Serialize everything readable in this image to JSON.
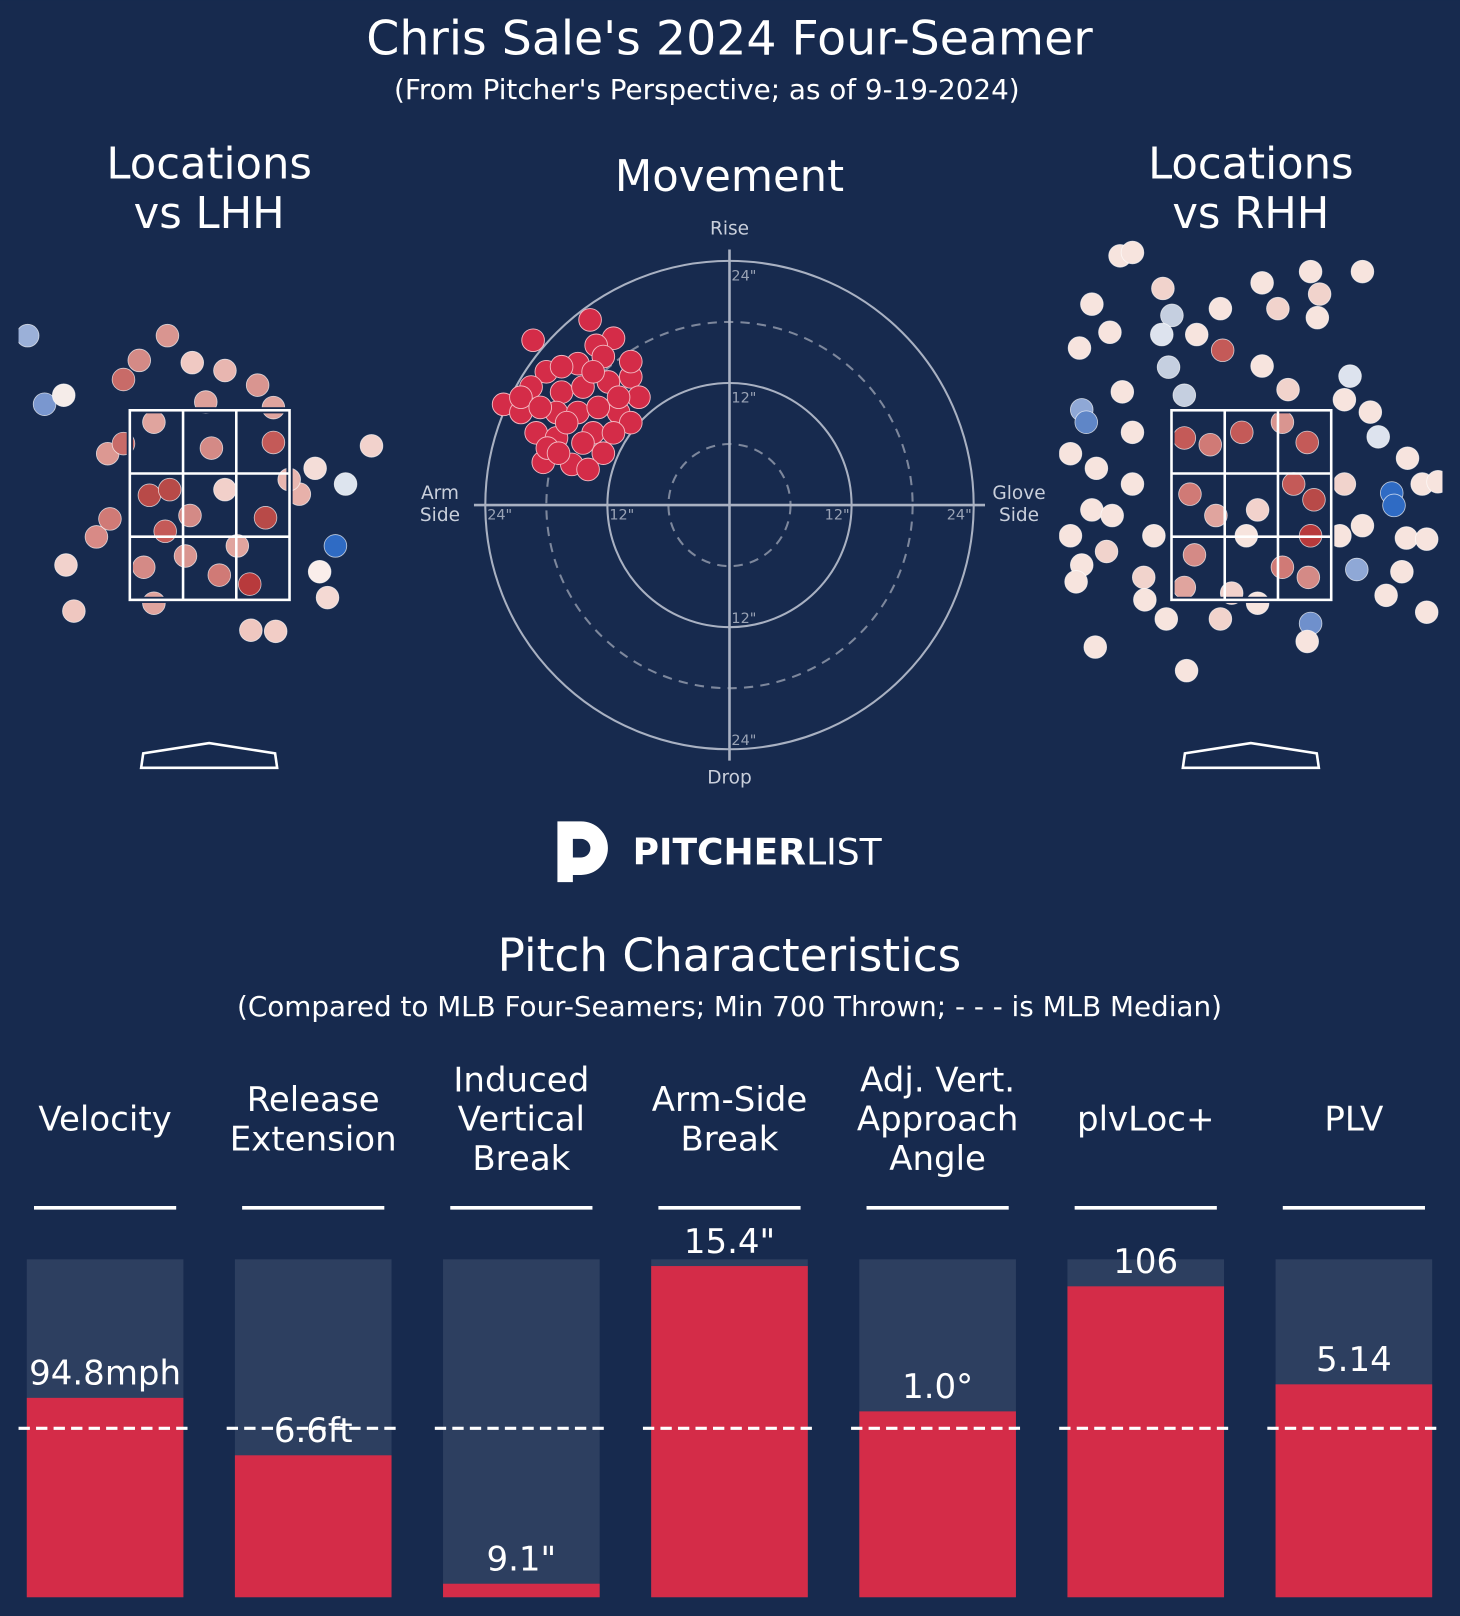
{
  "title": "Chris Sale's 2024 Four-Seamer",
  "subtitle": "(From Pitcher's Perspective; as of 9-19-2024)",
  "logo": [
    "PITCHER",
    "LIST"
  ],
  "chart_data": [
    {
      "type": "location",
      "title": [
        "Locations",
        "vs LHH"
      ],
      "xlim": [
        -1.7,
        1.7
      ],
      "ylim": [
        0.5,
        5.0
      ],
      "series": [
        {
          "x": [
            -1.61,
            -1.46,
            -1.29,
            -0.37,
            -0.62,
            -0.15,
            0.14,
            0.43,
            -0.76,
            0.57,
            1.44,
            1.21,
            0.94,
            1.12,
            0.98,
            1.05,
            0.59,
            0.37,
            -1.2,
            -1.27,
            -1.0,
            -0.88,
            -0.9,
            -0.49,
            0.36,
            0.09,
            -0.53,
            -0.35,
            -0.39,
            0.02,
            0.14,
            0.5,
            0.57,
            -0.17,
            -0.58,
            -0.21,
            0.8,
            0.25,
            -0.49,
            0.71,
            -0.76,
            -0.03
          ],
          "y": [
            3.95,
            3.34,
            3.42,
            3.95,
            3.73,
            3.71,
            3.64,
            3.51,
            3.56,
            3.31,
            2.97,
            2.63,
            2.77,
            2.08,
            1.85,
            1.62,
            1.32,
            1.33,
            1.5,
            1.91,
            2.16,
            2.32,
            2.9,
            1.57,
            1.74,
            1.82,
            2.53,
            2.58,
            2.21,
            2.95,
            2.58,
            2.33,
            3.0,
            2.35,
            1.89,
            1.99,
            2.54,
            2.08,
            3.18,
            2.67,
            2.99,
            3.36
          ],
          "colors": [
            "#9bb0d8",
            "#7a97cf",
            "#f5ece9",
            "#d99590",
            "#d48a86",
            "#f0c9c3",
            "#e8b6b0",
            "#d99590",
            "#c86b68",
            "#e0a49e",
            "#f2d2cc",
            "#dde4ee",
            "#f4ddd8",
            "#2f6bc4",
            "#faeeea",
            "#f4d9d3",
            "#f2cdc6",
            "#efc7c0",
            "#efc7c0",
            "#f2d2cc",
            "#d88a86",
            "#d07a76",
            "#dc9892",
            "#e0a49e",
            "#b83a3c",
            "#d07a76",
            "#b84a48",
            "#b84a48",
            "#c45a58",
            "#d48a86",
            "#f2d0ca",
            "#b84a48",
            "#c45a58",
            "#d48a86",
            "#d48a86",
            "#d99590",
            "#e7b1aa",
            "#e0a49e",
            "#e0a49e",
            "#e8b6b0",
            "#c86b68",
            "#dda09a"
          ]
        }
      ]
    },
    {
      "type": "movement",
      "title": [
        "Movement"
      ],
      "rlim": [
        0,
        24
      ],
      "axis_labels": {
        "top": [
          "Rise"
        ],
        "bottom": [
          "Drop"
        ],
        "left": [
          "Arm",
          "Side"
        ],
        "right": [
          "Glove",
          "Side"
        ]
      },
      "rings": [
        {
          "value": 12,
          "label": "12\""
        },
        {
          "value": 24,
          "label": "24\""
        }
      ],
      "dashed_rings": [
        6,
        18
      ],
      "series": [
        {
          "color": "#d42c48",
          "x": [
            -13.7,
            -19.3,
            -11.4,
            -13.1,
            -22.2,
            -18.0,
            -14.9,
            -9.7,
            -8.9,
            -10.9,
            -9.7,
            -20.5,
            -19.0,
            -17.0,
            -15.5,
            -18.3,
            -12.4,
            -13.4,
            -16.5,
            -14.4,
            -11.9,
            -17.0,
            -14.9,
            -12.9,
            -19.5,
            -16.0,
            -11.4,
            -17.9,
            -14.4,
            -10.9,
            -12.4,
            -16.5,
            -20.5,
            -13.9,
            -16.8,
            -9.7,
            -18.6,
            -13.4
          ],
          "y": [
            18.2,
            16.2,
            16.4,
            15.7,
            9.9,
            13.1,
            13.9,
            12.6,
            10.6,
            9.1,
            8.1,
            9.1,
            7.1,
            6.6,
            4.0,
            4.2,
            5.1,
            7.1,
            11.1,
            11.6,
            12.1,
            9.1,
            9.1,
            9.6,
            11.6,
            8.1,
            7.1,
            5.6,
            6.1,
            10.6,
            14.6,
            13.6,
            10.6,
            3.5,
            5.1,
            14.1,
            9.6,
            13.1
          ]
        }
      ]
    },
    {
      "type": "location",
      "title": [
        "Locations",
        "vs RHH"
      ],
      "xlim": [
        -1.7,
        1.7
      ],
      "ylim": [
        0.5,
        5.0
      ],
      "series": [
        {
          "x": [
            -1.16,
            -1.05,
            0.53,
            0.99,
            -0.78,
            0.1,
            -1.41,
            0.61,
            -0.27,
            -0.7,
            0.24,
            -1.25,
            -0.48,
            0.59,
            -1.52,
            -0.79,
            -0.25,
            0.1,
            0.88,
            -0.73,
            -0.59,
            0.33,
            -1.14,
            -1.5,
            -1.46,
            -1.6,
            -1.37,
            -1.41,
            -1.6,
            -1.5,
            -1.55,
            -1.28,
            -1.05,
            -0.95,
            -0.94,
            -0.75,
            -1.38,
            -0.57,
            -0.27,
            0.53,
            0.5,
            0.94,
            1.25,
            1.27,
            1.13,
            1.39,
            1.52,
            1.66,
            1.38,
            1.56,
            1.34,
            1.56,
            1.2,
            0.99,
            0.83,
            -0.59,
            -0.36,
            -0.08,
            0.28,
            0.5,
            -0.54,
            -0.31,
            0.06,
            0.38,
            0.56,
            -0.5,
            -0.04,
            0.28,
            0.53,
            0.51,
            -0.59,
            -0.17,
            0.06,
            0.83,
            1.06,
            -1.05,
            -1.23,
            0.79,
            -0.86
          ],
          "y": [
            4.66,
            4.69,
            4.52,
            4.52,
            4.37,
            4.42,
            4.23,
            4.32,
            4.19,
            4.13,
            4.19,
            3.98,
            3.96,
            4.11,
            3.84,
            3.96,
            3.82,
            3.68,
            3.59,
            3.67,
            3.42,
            3.47,
            3.45,
            3.29,
            3.18,
            2.9,
            2.77,
            2.4,
            2.17,
            1.91,
            1.76,
            2.03,
            2.63,
            1.8,
            1.6,
            1.43,
            1.18,
            0.97,
            1.43,
            1.39,
            1.23,
            1.87,
            2.55,
            2.44,
            3.05,
            2.86,
            2.63,
            2.65,
            2.15,
            2.14,
            1.85,
            1.49,
            1.64,
            2.26,
            2.63,
            3.04,
            2.98,
            3.09,
            3.18,
            3.0,
            2.54,
            2.35,
            2.4,
            2.63,
            2.49,
            2.0,
            2.17,
            1.89,
            2.17,
            1.8,
            1.71,
            1.66,
            1.57,
            3.38,
            3.27,
            3.09,
            2.35,
            2.17,
            2.17
          ],
          "colors": [
            "#f7e4de",
            "#f7e4de",
            "#f7e4de",
            "#f7e4de",
            "#f1d3cc",
            "#f7e4de",
            "#f7e4de",
            "#f1d3cc",
            "#f7e4de",
            "#c5cfe0",
            "#f1d3cc",
            "#f7e4de",
            "#f7e4de",
            "#f7e4de",
            "#f7e4de",
            "#dde3ee",
            "#c45a58",
            "#f7e4de",
            "#dde3ee",
            "#c5cfe0",
            "#c5cfe0",
            "#f1d3cc",
            "#f7e4de",
            "#8fa8d6",
            "#5f86c7",
            "#f7e4de",
            "#f7e4de",
            "#f7e4de",
            "#f7e4de",
            "#f7e4de",
            "#f7e4de",
            "#f1d3cc",
            "#f7e4de",
            "#f1d3cc",
            "#f7e4de",
            "#f7e4de",
            "#f7e4de",
            "#f7e4de",
            "#f1d3cc",
            "#6f90cc",
            "#f7e4de",
            "#8fa8d6",
            "#2f6bc4",
            "#2f6bc4",
            "#dde3ee",
            "#f7e4de",
            "#f7e4de",
            "#f7e4de",
            "#f7e4de",
            "#f7e4de",
            "#f7e4de",
            "#f7e4de",
            "#f7e4de",
            "#f7e4de",
            "#f1d3cc",
            "#c45a58",
            "#d07a76",
            "#c45a58",
            "#d99590",
            "#c45a58",
            "#d07a76",
            "#e0a49e",
            "#f2d2cc",
            "#c45a58",
            "#b84a48",
            "#d48a86",
            "#f7e4de",
            "#d07a76",
            "#b83a3c",
            "#d48a86",
            "#e0a49e",
            "#f2d2cc",
            "#f7e4de",
            "#f7e4de",
            "#f7e4de",
            "#f7e4de",
            "#f7e4de",
            "#f7e4de",
            "#f7e4de"
          ]
        }
      ]
    },
    {
      "type": "bar",
      "title": "Pitch Characteristics",
      "subtitle": "(Compared to MLB Four-Seamers; Min 700 Thrown; - - - is MLB Median)",
      "categories": [
        [
          "Velocity"
        ],
        [
          "Release",
          "Extension"
        ],
        [
          "Induced",
          "Vertical",
          "Break"
        ],
        [
          "Arm-Side",
          "Break"
        ],
        [
          "Adj. Vert.",
          "Approach",
          "Angle"
        ],
        [
          "plvLoc+"
        ],
        [
          "PLV"
        ]
      ],
      "values": [
        59,
        42,
        4,
        98,
        55,
        92,
        63
      ],
      "stat_labels": [
        "94.8mph",
        "6.6ft",
        "9.1\"",
        "15.4\"",
        "1.0°",
        "106",
        "5.14"
      ],
      "ylim": [
        0,
        100
      ],
      "median": 50,
      "color": "#d42c48",
      "track_color": "#2d3f60"
    }
  ]
}
